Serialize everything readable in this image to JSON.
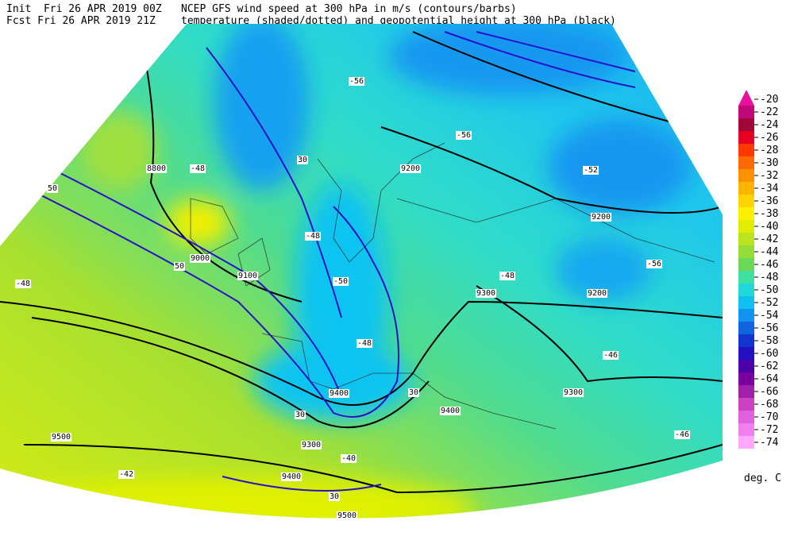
{
  "header": {
    "init": "Init  Fri 26 APR 2019 00Z",
    "fcst": "Fcst Fri 26 APR 2019 21Z",
    "title_line1": "NCEP GFS wind speed at 300 hPa in m/s (contours/barbs)",
    "title_line2": "temperature (shaded/dotted) and geopotential height at 300 hPa (black)"
  },
  "colorbar": {
    "ticks": [
      -20,
      -22,
      -24,
      -26,
      -28,
      -30,
      -32,
      -34,
      -36,
      -38,
      -40,
      -42,
      -44,
      -46,
      -48,
      -50,
      -52,
      -54,
      -56,
      -58,
      -60,
      -62,
      -64,
      -66,
      -68,
      -70,
      -72,
      -74
    ],
    "colors": [
      "#e8109c",
      "#c00878",
      "#a00838",
      "#e80020",
      "#ff3800",
      "#ff6a00",
      "#ff9000",
      "#ffb400",
      "#ffd400",
      "#fff000",
      "#e0ec00",
      "#bce420",
      "#94dc38",
      "#6cd858",
      "#40e0a0",
      "#20d8d8",
      "#10c0f0",
      "#1094f0",
      "#1064e0",
      "#1434d0",
      "#2410c0",
      "#4c00a8",
      "#7800a0",
      "#a020a8",
      "#cc40c4",
      "#e060e0",
      "#f080f0",
      "#ffa8ff"
    ],
    "unit": "deg. C"
  },
  "map_labels": [
    "8800",
    "9000",
    "9100",
    "9200",
    "9200",
    "9300",
    "9200",
    "9300",
    "9400",
    "9400",
    "9300",
    "9500",
    "9400",
    "9500",
    "30",
    "30",
    "30",
    "50",
    "30",
    "50",
    "-48",
    "-48",
    "-50",
    "-56",
    "-56",
    "-52",
    "-56",
    "-48",
    "-46",
    "-48",
    "-40",
    "-42",
    "-46",
    "-48"
  ]
}
